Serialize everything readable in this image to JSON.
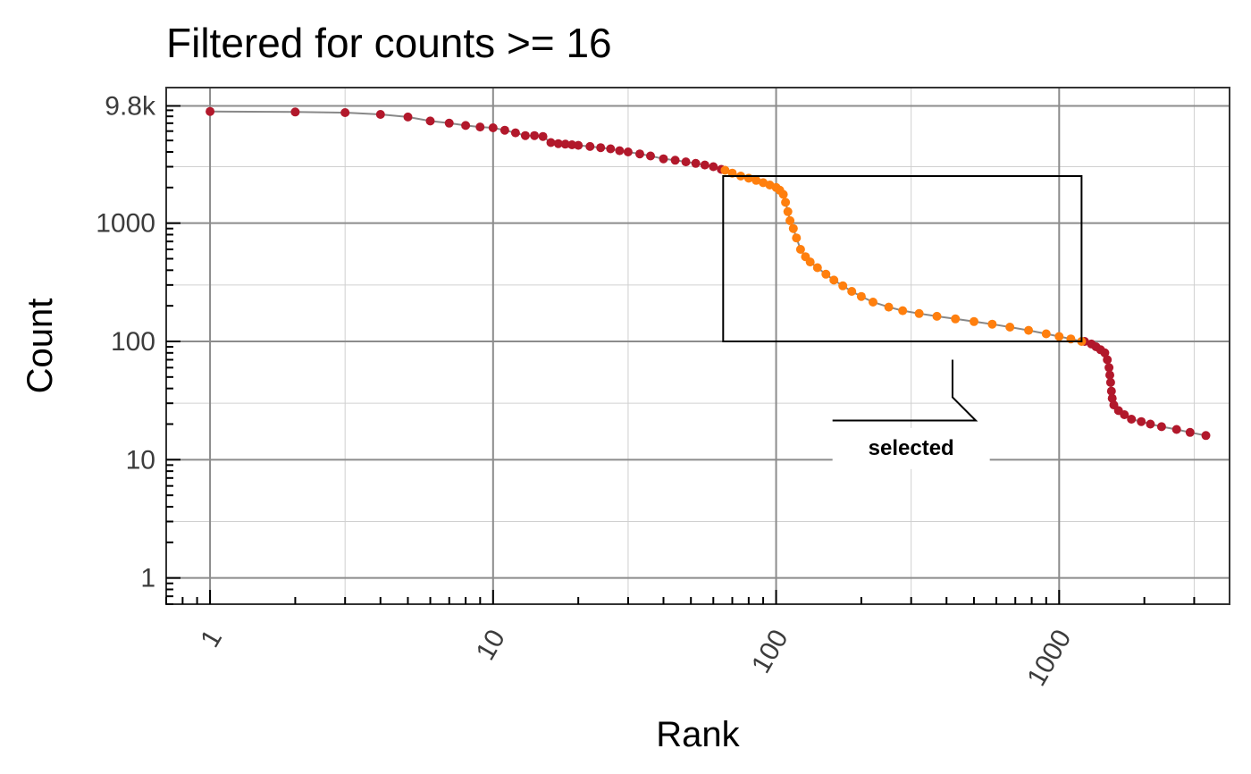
{
  "chart_data": {
    "type": "scatter",
    "title": "Filtered for counts >= 16",
    "xlabel": "Rank",
    "ylabel": "Count",
    "x_scale": "log10",
    "y_scale": "log10",
    "xlim": [
      0.7,
      4000
    ],
    "ylim": [
      0.6,
      14000
    ],
    "x_ticks": [
      1,
      10,
      100,
      1000
    ],
    "x_tick_labels": [
      "1",
      "10",
      "100",
      "1000"
    ],
    "y_ticks": [
      1,
      10,
      100,
      1000,
      9800
    ],
    "y_tick_labels": [
      "1",
      "10",
      "100",
      "1000",
      "9.8k"
    ],
    "grid": true,
    "colors": {
      "not_selected": "#b2182b",
      "selected": "#ff7f0e",
      "line": "#888888",
      "box": "#000000"
    },
    "series": [
      {
        "name": "not selected",
        "color": "#b2182b",
        "points": [
          [
            1,
            8800
          ],
          [
            2,
            8700
          ],
          [
            3,
            8600
          ],
          [
            4,
            8300
          ],
          [
            5,
            7900
          ],
          [
            6,
            7300
          ],
          [
            7,
            7000
          ],
          [
            8,
            6700
          ],
          [
            9,
            6500
          ],
          [
            10,
            6400
          ],
          [
            11,
            6100
          ],
          [
            12,
            5800
          ],
          [
            13,
            5500
          ],
          [
            14,
            5500
          ],
          [
            15,
            5400
          ],
          [
            16,
            4800
          ],
          [
            17,
            4700
          ],
          [
            18,
            4650
          ],
          [
            19,
            4600
          ],
          [
            20,
            4550
          ],
          [
            22,
            4450
          ],
          [
            24,
            4350
          ],
          [
            26,
            4250
          ],
          [
            28,
            4100
          ],
          [
            30,
            4000
          ],
          [
            33,
            3850
          ],
          [
            36,
            3700
          ],
          [
            40,
            3500
          ],
          [
            44,
            3400
          ],
          [
            48,
            3300
          ],
          [
            52,
            3200
          ],
          [
            56,
            3100
          ],
          [
            60,
            3000
          ],
          [
            64,
            2850
          ],
          [
            1230,
            100
          ],
          [
            1300,
            95
          ],
          [
            1350,
            90
          ],
          [
            1400,
            85
          ],
          [
            1450,
            80
          ],
          [
            1480,
            70
          ],
          [
            1500,
            60
          ],
          [
            1510,
            52
          ],
          [
            1520,
            45
          ],
          [
            1530,
            38
          ],
          [
            1540,
            33
          ],
          [
            1560,
            29
          ],
          [
            1620,
            26
          ],
          [
            1700,
            24
          ],
          [
            1800,
            22
          ],
          [
            1950,
            21
          ],
          [
            2100,
            20
          ],
          [
            2300,
            19
          ],
          [
            2600,
            18
          ],
          [
            2900,
            17
          ],
          [
            3300,
            16
          ]
        ]
      },
      {
        "name": "selected",
        "color": "#ff7f0e",
        "points": [
          [
            66,
            2800
          ],
          [
            70,
            2650
          ],
          [
            75,
            2500
          ],
          [
            80,
            2400
          ],
          [
            85,
            2300
          ],
          [
            90,
            2200
          ],
          [
            95,
            2100
          ],
          [
            100,
            2000
          ],
          [
            103,
            1900
          ],
          [
            106,
            1750
          ],
          [
            108,
            1500
          ],
          [
            110,
            1250
          ],
          [
            112,
            1050
          ],
          [
            115,
            900
          ],
          [
            118,
            750
          ],
          [
            122,
            600
          ],
          [
            127,
            520
          ],
          [
            132,
            470
          ],
          [
            140,
            420
          ],
          [
            150,
            370
          ],
          [
            160,
            330
          ],
          [
            172,
            295
          ],
          [
            185,
            265
          ],
          [
            200,
            240
          ],
          [
            220,
            215
          ],
          [
            250,
            195
          ],
          [
            280,
            182
          ],
          [
            320,
            172
          ],
          [
            370,
            163
          ],
          [
            430,
            155
          ],
          [
            500,
            147
          ],
          [
            580,
            140
          ],
          [
            670,
            132
          ],
          [
            780,
            124
          ],
          [
            900,
            116
          ],
          [
            1000,
            110
          ],
          [
            1100,
            105
          ],
          [
            1200,
            100
          ]
        ]
      }
    ],
    "selection_box": {
      "x": [
        65,
        1200
      ],
      "y": [
        100,
        2500
      ]
    },
    "annotations": [
      {
        "label": "selected",
        "anchor": [
          420,
          70
        ],
        "text_at": [
          300,
          11
        ]
      }
    ]
  }
}
